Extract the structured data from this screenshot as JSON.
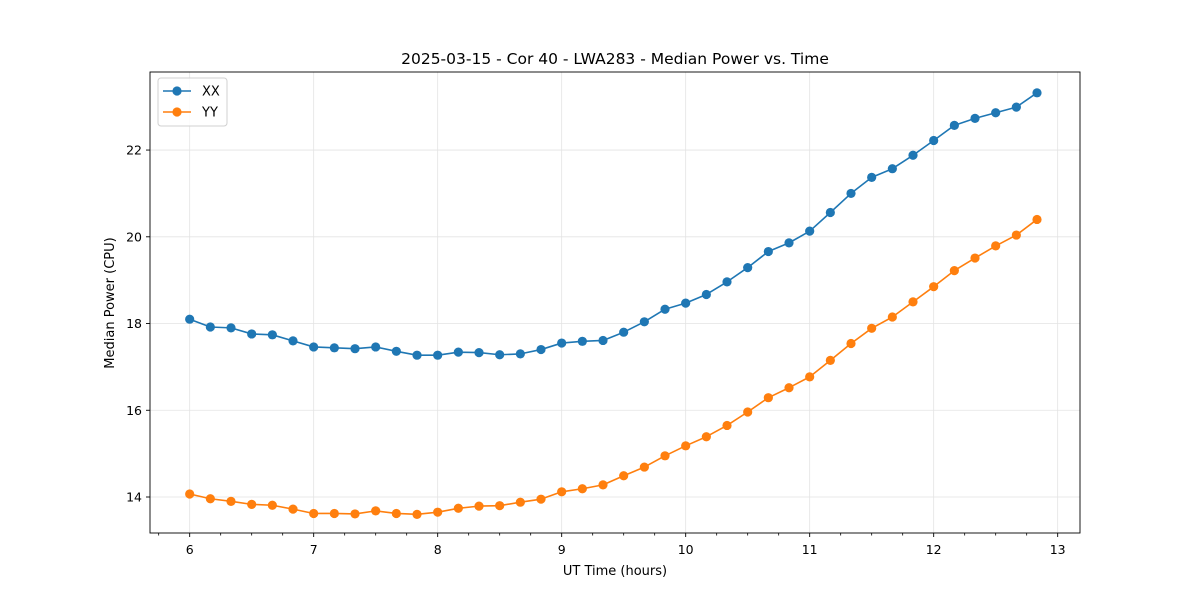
{
  "chart_data": {
    "type": "line",
    "title": "2025-03-15 - Cor 40 - LWA283 - Median Power vs. Time",
    "xlabel": "UT Time (hours)",
    "ylabel": "Median Power (CPU)",
    "xlim": [
      5.68,
      13.18
    ],
    "ylim": [
      13.17,
      23.8
    ],
    "xticks": [
      6,
      7,
      8,
      9,
      10,
      11,
      12,
      13
    ],
    "yticks": [
      14,
      16,
      18,
      20,
      22
    ],
    "grid": true,
    "legend_position": "upper-left",
    "x": [
      6.0,
      6.1667,
      6.3333,
      6.5,
      6.6667,
      6.8333,
      7.0,
      7.1667,
      7.3333,
      7.5,
      7.6667,
      7.8333,
      8.0,
      8.1667,
      8.3333,
      8.5,
      8.6667,
      8.8333,
      9.0,
      9.1667,
      9.3333,
      9.5,
      9.6667,
      9.8333,
      10.0,
      10.1667,
      10.3333,
      10.5,
      10.6667,
      10.8333,
      11.0,
      11.1667,
      11.3333,
      11.5,
      11.6667,
      11.8333,
      12.0,
      12.1667,
      12.3333,
      12.5,
      12.6667,
      12.8333
    ],
    "series": [
      {
        "name": "XX",
        "color": "#1f77b4",
        "values": [
          18.1,
          17.92,
          17.9,
          17.76,
          17.74,
          17.6,
          17.46,
          17.44,
          17.42,
          17.46,
          17.36,
          17.27,
          17.27,
          17.34,
          17.33,
          17.28,
          17.3,
          17.4,
          17.55,
          17.59,
          17.61,
          17.8,
          18.04,
          18.33,
          18.47,
          18.67,
          18.96,
          19.29,
          19.66,
          19.86,
          20.13,
          20.56,
          21.0,
          21.37,
          21.57,
          21.88,
          22.22,
          22.57,
          22.73,
          22.86,
          22.99,
          23.32
        ]
      },
      {
        "name": "YY",
        "color": "#ff7f0e",
        "values": [
          14.07,
          13.96,
          13.9,
          13.83,
          13.81,
          13.72,
          13.62,
          13.62,
          13.61,
          13.68,
          13.62,
          13.6,
          13.65,
          13.74,
          13.79,
          13.8,
          13.88,
          13.95,
          14.12,
          14.19,
          14.28,
          14.49,
          14.69,
          14.95,
          15.18,
          15.39,
          15.65,
          15.96,
          16.29,
          16.52,
          16.77,
          17.15,
          17.54,
          17.89,
          18.15,
          18.5,
          18.85,
          19.22,
          19.51,
          19.79,
          20.04,
          20.4
        ]
      }
    ]
  }
}
